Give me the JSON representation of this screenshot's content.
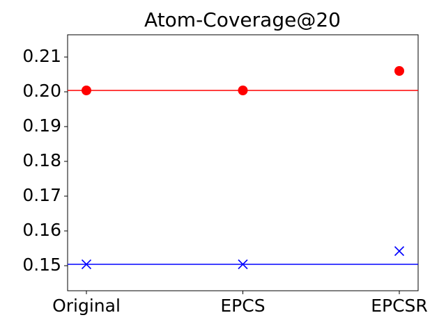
{
  "chart_data": {
    "type": "scatter",
    "title": "Atom-Coverage@20",
    "categories": [
      "Original",
      "EPCS",
      "EPCSR"
    ],
    "series": [
      {
        "color": "#ff0000",
        "marker": "o",
        "values": [
          0.2004,
          0.2004,
          0.206
        ]
      },
      {
        "color": "#0000ff",
        "marker": "x",
        "values": [
          0.1504,
          0.1504,
          0.1542
        ]
      }
    ],
    "baseline_lines": true,
    "ylim": [
      0.1428,
      0.2164
    ],
    "yticks": [
      0.15,
      0.16,
      0.17,
      0.18,
      0.19,
      {
        "value": 0.2,
        "label": "0.20"
      },
      0.21
    ],
    "grid": false
  }
}
